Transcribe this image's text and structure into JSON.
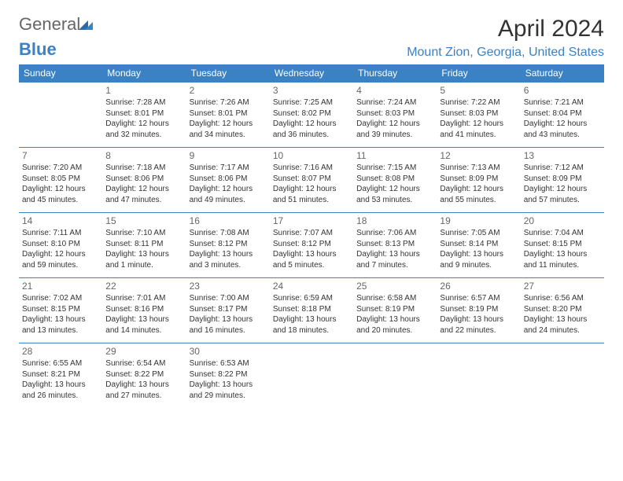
{
  "brand": {
    "part1": "General",
    "part2": "Blue"
  },
  "title": "April 2024",
  "location": "Mount Zion, Georgia, United States",
  "colors": {
    "accent": "#3b82c4",
    "text": "#333333",
    "muted": "#666666",
    "bg": "#ffffff"
  },
  "weekdays": [
    "Sunday",
    "Monday",
    "Tuesday",
    "Wednesday",
    "Thursday",
    "Friday",
    "Saturday"
  ],
  "weeks": [
    [
      null,
      {
        "n": "1",
        "sr": "Sunrise: 7:28 AM",
        "ss": "Sunset: 8:01 PM",
        "dl": "Daylight: 12 hours and 32 minutes."
      },
      {
        "n": "2",
        "sr": "Sunrise: 7:26 AM",
        "ss": "Sunset: 8:01 PM",
        "dl": "Daylight: 12 hours and 34 minutes."
      },
      {
        "n": "3",
        "sr": "Sunrise: 7:25 AM",
        "ss": "Sunset: 8:02 PM",
        "dl": "Daylight: 12 hours and 36 minutes."
      },
      {
        "n": "4",
        "sr": "Sunrise: 7:24 AM",
        "ss": "Sunset: 8:03 PM",
        "dl": "Daylight: 12 hours and 39 minutes."
      },
      {
        "n": "5",
        "sr": "Sunrise: 7:22 AM",
        "ss": "Sunset: 8:03 PM",
        "dl": "Daylight: 12 hours and 41 minutes."
      },
      {
        "n": "6",
        "sr": "Sunrise: 7:21 AM",
        "ss": "Sunset: 8:04 PM",
        "dl": "Daylight: 12 hours and 43 minutes."
      }
    ],
    [
      {
        "n": "7",
        "sr": "Sunrise: 7:20 AM",
        "ss": "Sunset: 8:05 PM",
        "dl": "Daylight: 12 hours and 45 minutes."
      },
      {
        "n": "8",
        "sr": "Sunrise: 7:18 AM",
        "ss": "Sunset: 8:06 PM",
        "dl": "Daylight: 12 hours and 47 minutes."
      },
      {
        "n": "9",
        "sr": "Sunrise: 7:17 AM",
        "ss": "Sunset: 8:06 PM",
        "dl": "Daylight: 12 hours and 49 minutes."
      },
      {
        "n": "10",
        "sr": "Sunrise: 7:16 AM",
        "ss": "Sunset: 8:07 PM",
        "dl": "Daylight: 12 hours and 51 minutes."
      },
      {
        "n": "11",
        "sr": "Sunrise: 7:15 AM",
        "ss": "Sunset: 8:08 PM",
        "dl": "Daylight: 12 hours and 53 minutes."
      },
      {
        "n": "12",
        "sr": "Sunrise: 7:13 AM",
        "ss": "Sunset: 8:09 PM",
        "dl": "Daylight: 12 hours and 55 minutes."
      },
      {
        "n": "13",
        "sr": "Sunrise: 7:12 AM",
        "ss": "Sunset: 8:09 PM",
        "dl": "Daylight: 12 hours and 57 minutes."
      }
    ],
    [
      {
        "n": "14",
        "sr": "Sunrise: 7:11 AM",
        "ss": "Sunset: 8:10 PM",
        "dl": "Daylight: 12 hours and 59 minutes."
      },
      {
        "n": "15",
        "sr": "Sunrise: 7:10 AM",
        "ss": "Sunset: 8:11 PM",
        "dl": "Daylight: 13 hours and 1 minute."
      },
      {
        "n": "16",
        "sr": "Sunrise: 7:08 AM",
        "ss": "Sunset: 8:12 PM",
        "dl": "Daylight: 13 hours and 3 minutes."
      },
      {
        "n": "17",
        "sr": "Sunrise: 7:07 AM",
        "ss": "Sunset: 8:12 PM",
        "dl": "Daylight: 13 hours and 5 minutes."
      },
      {
        "n": "18",
        "sr": "Sunrise: 7:06 AM",
        "ss": "Sunset: 8:13 PM",
        "dl": "Daylight: 13 hours and 7 minutes."
      },
      {
        "n": "19",
        "sr": "Sunrise: 7:05 AM",
        "ss": "Sunset: 8:14 PM",
        "dl": "Daylight: 13 hours and 9 minutes."
      },
      {
        "n": "20",
        "sr": "Sunrise: 7:04 AM",
        "ss": "Sunset: 8:15 PM",
        "dl": "Daylight: 13 hours and 11 minutes."
      }
    ],
    [
      {
        "n": "21",
        "sr": "Sunrise: 7:02 AM",
        "ss": "Sunset: 8:15 PM",
        "dl": "Daylight: 13 hours and 13 minutes."
      },
      {
        "n": "22",
        "sr": "Sunrise: 7:01 AM",
        "ss": "Sunset: 8:16 PM",
        "dl": "Daylight: 13 hours and 14 minutes."
      },
      {
        "n": "23",
        "sr": "Sunrise: 7:00 AM",
        "ss": "Sunset: 8:17 PM",
        "dl": "Daylight: 13 hours and 16 minutes."
      },
      {
        "n": "24",
        "sr": "Sunrise: 6:59 AM",
        "ss": "Sunset: 8:18 PM",
        "dl": "Daylight: 13 hours and 18 minutes."
      },
      {
        "n": "25",
        "sr": "Sunrise: 6:58 AM",
        "ss": "Sunset: 8:19 PM",
        "dl": "Daylight: 13 hours and 20 minutes."
      },
      {
        "n": "26",
        "sr": "Sunrise: 6:57 AM",
        "ss": "Sunset: 8:19 PM",
        "dl": "Daylight: 13 hours and 22 minutes."
      },
      {
        "n": "27",
        "sr": "Sunrise: 6:56 AM",
        "ss": "Sunset: 8:20 PM",
        "dl": "Daylight: 13 hours and 24 minutes."
      }
    ],
    [
      {
        "n": "28",
        "sr": "Sunrise: 6:55 AM",
        "ss": "Sunset: 8:21 PM",
        "dl": "Daylight: 13 hours and 26 minutes."
      },
      {
        "n": "29",
        "sr": "Sunrise: 6:54 AM",
        "ss": "Sunset: 8:22 PM",
        "dl": "Daylight: 13 hours and 27 minutes."
      },
      {
        "n": "30",
        "sr": "Sunrise: 6:53 AM",
        "ss": "Sunset: 8:22 PM",
        "dl": "Daylight: 13 hours and 29 minutes."
      },
      null,
      null,
      null,
      null
    ]
  ]
}
